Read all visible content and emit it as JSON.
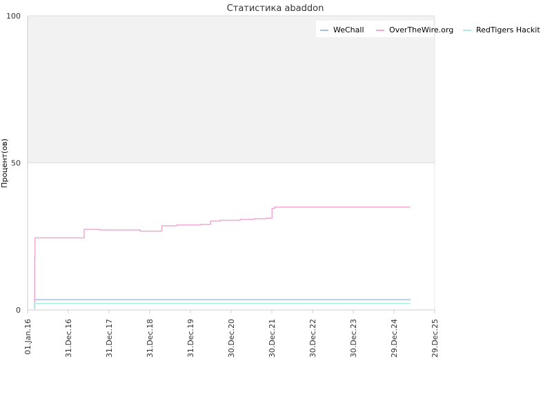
{
  "chart_data": {
    "type": "line",
    "title": "Статистика abaddon",
    "ylabel": "Процент(ов)",
    "xlabel": "",
    "ylim": [
      0,
      100
    ],
    "yticks": [
      0,
      50,
      100
    ],
    "x_ticks": [
      "01.Jan.16",
      "31.Dec.16",
      "31.Dec.17",
      "31.Dec.18",
      "31.Dec.19",
      "30.Dec.20",
      "30.Dec.21",
      "30.Dec.22",
      "30.Dec.23",
      "29.Dec.24",
      "29.Dec.25"
    ],
    "xlim": [
      "2016-01-01",
      "2025-12-29"
    ],
    "upper_band": {
      "from": 50,
      "to": 100,
      "color": "#f2f2f2"
    },
    "legend_position": "top-right",
    "step": true,
    "series": [
      {
        "name": "WeChall",
        "color": "#a3bdf0",
        "points": [
          [
            "2016-03-02",
            0.5
          ],
          [
            "2016-03-04",
            3.5
          ],
          [
            "2025-05-25",
            3.5
          ]
        ]
      },
      {
        "name": "OverTheWire.org",
        "color": "#f0a8d2",
        "points": [
          [
            "2016-03-02",
            1
          ],
          [
            "2016-03-05",
            18
          ],
          [
            "2016-03-08",
            24.5
          ],
          [
            "2017-05-22",
            27.4
          ],
          [
            "2017-10-06",
            27.2
          ],
          [
            "2018-10-06",
            26.8
          ],
          [
            "2019-04-18",
            28.6
          ],
          [
            "2019-08-30",
            28.9
          ],
          [
            "2020-04-05",
            29.1
          ],
          [
            "2020-06-28",
            30.2
          ],
          [
            "2020-09-18",
            30.5
          ],
          [
            "2021-03-24",
            30.8
          ],
          [
            "2021-07-24",
            31.0
          ],
          [
            "2021-11-10",
            31.2
          ],
          [
            "2022-01-01",
            34.5
          ],
          [
            "2022-01-22",
            35.0
          ],
          [
            "2025-05-25",
            35.0
          ]
        ]
      },
      {
        "name": "RedTigers Hackit",
        "color": "#a8ecde",
        "points": [
          [
            "2016-03-02",
            1
          ],
          [
            "2016-03-06",
            2.2
          ],
          [
            "2025-05-25",
            2.2
          ]
        ]
      }
    ]
  }
}
